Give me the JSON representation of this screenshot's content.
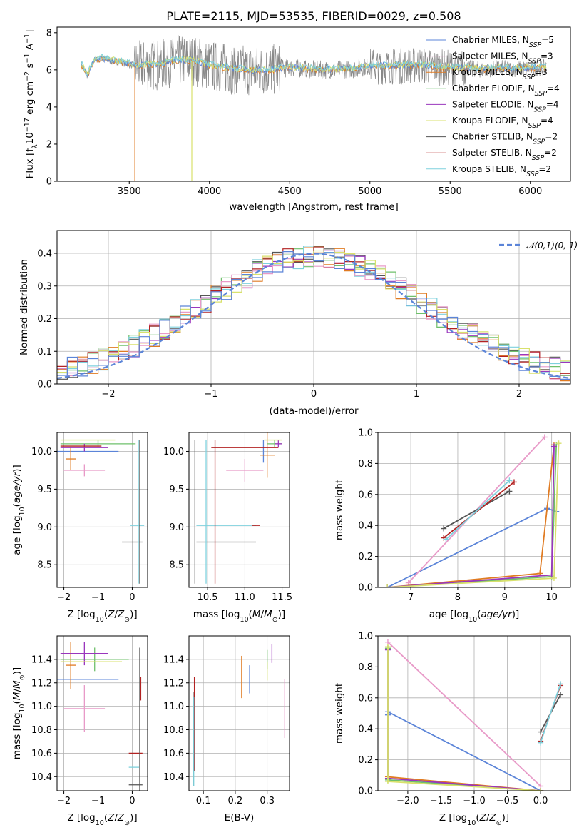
{
  "title": "PLATE=2115, MJD=53535, FIBERID=0029, z=0.508",
  "models": [
    {
      "name": "Chabrier MILES, N",
      "sub": "SSP",
      "n": "=5",
      "color": "#5b84d8"
    },
    {
      "name": "Salpeter MILES, N",
      "sub": "SSP",
      "n": "=3",
      "color": "#e89ac8"
    },
    {
      "name": "Kroupa MILES, N",
      "sub": "SSP",
      "n": "=3",
      "color": "#e07b22"
    },
    {
      "name": "Chabrier ELODIE, N",
      "sub": "SSP",
      "n": "=4",
      "color": "#6fc06b"
    },
    {
      "name": "Salpeter ELODIE, N",
      "sub": "SSP",
      "n": "=4",
      "color": "#9a36bd"
    },
    {
      "name": "Kroupa ELODIE, N",
      "sub": "SSP",
      "n": "=4",
      "color": "#d8e16c"
    },
    {
      "name": "Chabrier STELIB, N",
      "sub": "SSP",
      "n": "=2",
      "color": "#555555"
    },
    {
      "name": "Salpeter STELIB, N",
      "sub": "SSP",
      "n": "=2",
      "color": "#b22222"
    },
    {
      "name": "Kroupa STELIB, N",
      "sub": "SSP",
      "n": "=2",
      "color": "#7ed1dd"
    }
  ],
  "chart_data": [
    {
      "id": "spectrum",
      "type": "line",
      "xlabel": "wavelength [Angstrom, rest frame]",
      "ylabel": "Flux [f_λ 10^-17 erg cm^-2 s^-1 A^-1]",
      "xlim": [
        3050,
        6250
      ],
      "ylim": [
        0,
        8.3
      ],
      "xticks": [
        3500,
        4000,
        4500,
        5000,
        5500,
        6000
      ],
      "yticks": [
        0,
        2,
        4,
        6,
        8
      ],
      "grid": false,
      "legend": "top-right",
      "continuum_x": [
        3200,
        3240,
        3280,
        3320,
        3380,
        3450,
        3550,
        3700,
        3800,
        3900,
        4000,
        4100,
        4200,
        4300,
        4400,
        4500,
        4600,
        4700,
        4800,
        4900,
        5000,
        5100,
        5200,
        5300,
        5400,
        5500,
        5600,
        5700,
        5800,
        5900,
        6000,
        6100
      ],
      "continuum_y": [
        6.3,
        5.7,
        6.5,
        6.6,
        6.5,
        6.4,
        6.2,
        6.3,
        6.5,
        6.5,
        6.2,
        6.1,
        6.0,
        5.95,
        6.0,
        6.1,
        6.05,
        6.0,
        6.0,
        6.05,
        6.2,
        6.2,
        6.2,
        6.25,
        6.15,
        6.1,
        6.1,
        6.0,
        6.1,
        6.05,
        6.1,
        6.1
      ],
      "observed_range": [
        3950,
        6080
      ],
      "drops": [
        {
          "x": 3535,
          "y_bottom": 0,
          "color": "#e07b22"
        },
        {
          "x": 3890,
          "y_bottom": 0,
          "color": "#d8e16c"
        }
      ]
    },
    {
      "id": "residuals",
      "type": "histogram",
      "xlabel": "(data-model)/error",
      "ylabel": "Normed distribution",
      "xlim": [
        -2.5,
        2.5
      ],
      "ylim": [
        0,
        0.47
      ],
      "xticks": [
        -2,
        -1,
        0,
        1,
        2
      ],
      "yticks": [
        0.0,
        0.1,
        0.2,
        0.3,
        0.4
      ],
      "grid": true,
      "bin_width": 0.1,
      "series": [
        {
          "name": "𝒩(0,1)",
          "style": "dashed",
          "color": "#5b84d8"
        }
      ]
    },
    {
      "id": "age_vs_Z",
      "type": "errorbar",
      "xlabel": "Z [log10(Z/Z⊙)]",
      "ylabel": "age  [log10(age/yr)]",
      "xlim": [
        -2.2,
        0.45
      ],
      "ylim": [
        8.2,
        10.25
      ],
      "xticks": [
        -2,
        -1,
        0
      ],
      "yticks": [
        8.5,
        9.0,
        9.5,
        10.0
      ],
      "grid": true,
      "points": [
        {
          "m": 0,
          "x": -1.3,
          "xe": 0.9,
          "y": 10.0,
          "ye": 0
        },
        {
          "m": 1,
          "x": -1.4,
          "xe": 0.6,
          "y": 9.75,
          "ye": 0.08
        },
        {
          "m": 2,
          "x": -1.8,
          "xe": 0.15,
          "y": 9.9,
          "ye": 0.15
        },
        {
          "m": 3,
          "x": -1.0,
          "xe": 1.1,
          "y": 10.1,
          "ye": 0.05
        },
        {
          "m": 4,
          "x": -1.4,
          "xe": 0.7,
          "y": 10.05,
          "ye": 0.05
        },
        {
          "m": 5,
          "x": -1.3,
          "xe": 0.8,
          "y": 10.15,
          "ye": 0
        },
        {
          "m": 6,
          "x": 0.0,
          "xe": 0.3,
          "y": 8.8,
          "ye": 0
        },
        {
          "m": 7,
          "x": -1.5,
          "xe": 0.6,
          "y": 10.07,
          "ye": 0
        },
        {
          "m": 8,
          "x": 0.15,
          "xe": 0.2,
          "y": 9.02,
          "ye": 0
        },
        {
          "m": 6,
          "x": 0.22,
          "xe": 0,
          "y": 9.2,
          "ye": 0.95
        },
        {
          "m": 8,
          "x": 0.18,
          "xe": 0,
          "y": 9.2,
          "ye": 0.95
        },
        {
          "m": 3,
          "x": 0.15,
          "xe": 0,
          "y": 9.02,
          "ye": 0
        }
      ]
    },
    {
      "id": "age_vs_mass",
      "type": "errorbar",
      "xlabel": "mass [log10(M/M⊙)]",
      "ylabel": "",
      "xlim": [
        10.25,
        11.6
      ],
      "ylim": [
        8.2,
        10.25
      ],
      "xticks": [
        10.5,
        11.0,
        11.5
      ],
      "yticks": [
        8.5,
        9.0,
        9.5,
        10.0
      ],
      "grid": true,
      "points": [
        {
          "m": 0,
          "x": 11.25,
          "xe": 0,
          "y": 10.0,
          "ye": 0.15
        },
        {
          "m": 1,
          "x": 11.0,
          "xe": 0.25,
          "y": 9.75,
          "ye": 0.15
        },
        {
          "m": 2,
          "x": 11.3,
          "xe": 0.1,
          "y": 9.95,
          "ye": 0.3
        },
        {
          "m": 3,
          "x": 11.4,
          "xe": 0.1,
          "y": 10.1,
          "ye": 0.05
        },
        {
          "m": 4,
          "x": 11.45,
          "xe": 0.05,
          "y": 10.1,
          "ye": 0.05
        },
        {
          "m": 5,
          "x": 11.38,
          "xe": 0.12,
          "y": 10.15,
          "ye": 0
        },
        {
          "m": 6,
          "x": 10.75,
          "xe": 0.4,
          "y": 8.8,
          "ye": 0
        },
        {
          "m": 7,
          "x": 11.0,
          "xe": 0.45,
          "y": 10.05,
          "ye": 0
        },
        {
          "m": 8,
          "x": 10.75,
          "xe": 0.4,
          "y": 9.02,
          "ye": 0
        },
        {
          "m": 6,
          "x": 10.33,
          "xe": 0,
          "y": 9.2,
          "ye": 0.95
        },
        {
          "m": 8,
          "x": 10.48,
          "xe": 0,
          "y": 9.2,
          "ye": 0.95
        },
        {
          "m": 7,
          "x": 10.6,
          "xe": 0,
          "y": 9.2,
          "ye": 0.95
        },
        {
          "m": 7,
          "x": 11.15,
          "xe": 0.05,
          "y": 9.02,
          "ye": 0
        }
      ]
    },
    {
      "id": "weight_vs_age",
      "type": "line",
      "xlabel": "age  [log10(age/yr)]",
      "ylabel": "mass weight",
      "xlim": [
        6.3,
        10.4
      ],
      "ylim": [
        0,
        1.0
      ],
      "xticks": [
        7,
        8,
        9,
        10
      ],
      "yticks": [
        0.0,
        0.2,
        0.4,
        0.6,
        0.8,
        1.0
      ],
      "grid": true,
      "series": [
        {
          "m": 0,
          "x": [
            6.5,
            9.9,
            10.1
          ],
          "y": [
            0.0,
            0.51,
            0.49
          ]
        },
        {
          "m": 1,
          "x": [
            6.95,
            9.85
          ],
          "y": [
            0.03,
            0.97
          ]
        },
        {
          "m": 2,
          "x": [
            6.5,
            9.75,
            10.05
          ],
          "y": [
            0.0,
            0.09,
            0.92
          ]
        },
        {
          "m": 3,
          "x": [
            6.5,
            10.0,
            10.1
          ],
          "y": [
            0.0,
            0.07,
            0.92
          ]
        },
        {
          "m": 4,
          "x": [
            6.5,
            10.0,
            10.05
          ],
          "y": [
            0.0,
            0.08,
            0.91
          ]
        },
        {
          "m": 5,
          "x": [
            6.5,
            10.05,
            10.15
          ],
          "y": [
            0.0,
            0.06,
            0.93
          ]
        },
        {
          "m": 6,
          "x": [
            7.7,
            9.1
          ],
          "y": [
            0.38,
            0.62
          ]
        },
        {
          "m": 7,
          "x": [
            7.7,
            9.2
          ],
          "y": [
            0.32,
            0.68
          ]
        },
        {
          "m": 8,
          "x": [
            7.75,
            9.1
          ],
          "y": [
            0.31,
            0.69
          ]
        }
      ]
    },
    {
      "id": "mass_vs_Z",
      "type": "errorbar",
      "xlabel": "Z [log10(Z/Z⊙)]",
      "ylabel": "mass [log10(M/M⊙)]",
      "xlim": [
        -2.2,
        0.45
      ],
      "ylim": [
        10.28,
        11.6
      ],
      "xticks": [
        -2,
        -1,
        0
      ],
      "yticks": [
        10.4,
        10.6,
        10.8,
        11.0,
        11.2,
        11.4
      ],
      "grid": true,
      "points": [
        {
          "m": 0,
          "x": -1.3,
          "xe": 0.9,
          "y": 11.23,
          "ye": 0
        },
        {
          "m": 1,
          "x": -1.4,
          "xe": 0.6,
          "y": 10.98,
          "ye": 0.2
        },
        {
          "m": 2,
          "x": -1.8,
          "xe": 0.15,
          "y": 11.35,
          "ye": 0.2
        },
        {
          "m": 3,
          "x": -1.1,
          "xe": 1.0,
          "y": 11.4,
          "ye": 0.1
        },
        {
          "m": 4,
          "x": -1.4,
          "xe": 0.7,
          "y": 11.45,
          "ye": 0.1
        },
        {
          "m": 5,
          "x": -1.2,
          "xe": 0.9,
          "y": 11.38,
          "ye": 0
        },
        {
          "m": 6,
          "x": 0.1,
          "xe": 0.2,
          "y": 10.33,
          "ye": 0
        },
        {
          "m": 7,
          "x": 0.1,
          "xe": 0.2,
          "y": 10.6,
          "ye": 0
        },
        {
          "m": 8,
          "x": 0.05,
          "xe": 0.15,
          "y": 10.48,
          "ye": 0
        },
        {
          "m": 7,
          "x": 0.25,
          "xe": 0,
          "y": 11.15,
          "ye": 0.1
        },
        {
          "m": 6,
          "x": 0.22,
          "xe": 0,
          "y": 10.7,
          "ye": 0.8
        }
      ]
    },
    {
      "id": "mass_vs_EBV",
      "type": "errorbar",
      "xlabel": "E(B-V)",
      "ylabel": "",
      "xlim": [
        0.055,
        0.37
      ],
      "ylim": [
        10.28,
        11.6
      ],
      "xticks": [
        0.1,
        0.2,
        0.3
      ],
      "yticks": [
        10.4,
        10.6,
        10.8,
        11.0,
        11.2,
        11.4
      ],
      "grid": true,
      "points": [
        {
          "m": 0,
          "x": 0.245,
          "xe": 0,
          "y": 11.23,
          "ye": 0.12
        },
        {
          "m": 1,
          "x": 0.355,
          "xe": 0,
          "y": 10.98,
          "ye": 0.25
        },
        {
          "m": 2,
          "x": 0.22,
          "xe": 0,
          "y": 11.25,
          "ye": 0.18
        },
        {
          "m": 3,
          "x": 0.3,
          "xe": 0,
          "y": 11.4,
          "ye": 0.08
        },
        {
          "m": 4,
          "x": 0.315,
          "xe": 0,
          "y": 11.45,
          "ye": 0.08
        },
        {
          "m": 5,
          "x": 0.3,
          "xe": 0,
          "y": 11.3,
          "ye": 0.08
        },
        {
          "m": 6,
          "x": 0.068,
          "xe": 0,
          "y": 10.72,
          "ye": 0.4
        },
        {
          "m": 7,
          "x": 0.072,
          "xe": 0,
          "y": 10.85,
          "ye": 0.4
        },
        {
          "m": 8,
          "x": 0.07,
          "xe": 0,
          "y": 10.7,
          "ye": 0.38
        }
      ]
    },
    {
      "id": "weight_vs_Z",
      "type": "line",
      "xlabel": "Z [log10(Z/Z⊙)]",
      "ylabel": "mass weight",
      "xlim": [
        -2.45,
        0.45
      ],
      "ylim": [
        0,
        1.0
      ],
      "xticks": [
        -2.0,
        -1.5,
        -1.0,
        -0.5,
        0.0
      ],
      "yticks": [
        0.0,
        0.2,
        0.4,
        0.6,
        0.8,
        1.0
      ],
      "grid": true,
      "series": [
        {
          "m": 0,
          "x": [
            -2.3,
            -2.3,
            0.0
          ],
          "y": [
            0.49,
            0.51,
            0.0
          ]
        },
        {
          "m": 1,
          "x": [
            -2.3,
            0.0
          ],
          "y": [
            0.96,
            0.03
          ]
        },
        {
          "m": 2,
          "x": [
            -2.3,
            -2.3,
            0.0
          ],
          "y": [
            0.92,
            0.09,
            0.0
          ]
        },
        {
          "m": 3,
          "x": [
            -2.3,
            -2.3,
            0.0
          ],
          "y": [
            0.92,
            0.07,
            0.0
          ]
        },
        {
          "m": 4,
          "x": [
            -2.3,
            -2.3,
            0.0
          ],
          "y": [
            0.91,
            0.08,
            0.0
          ]
        },
        {
          "m": 5,
          "x": [
            -2.3,
            -2.3,
            0.0
          ],
          "y": [
            0.93,
            0.06,
            0.0
          ]
        },
        {
          "m": 6,
          "x": [
            0.0,
            0.3
          ],
          "y": [
            0.38,
            0.62
          ]
        },
        {
          "m": 7,
          "x": [
            0.0,
            0.3
          ],
          "y": [
            0.32,
            0.68
          ]
        },
        {
          "m": 8,
          "x": [
            0.0,
            0.3
          ],
          "y": [
            0.31,
            0.69
          ]
        }
      ]
    }
  ]
}
